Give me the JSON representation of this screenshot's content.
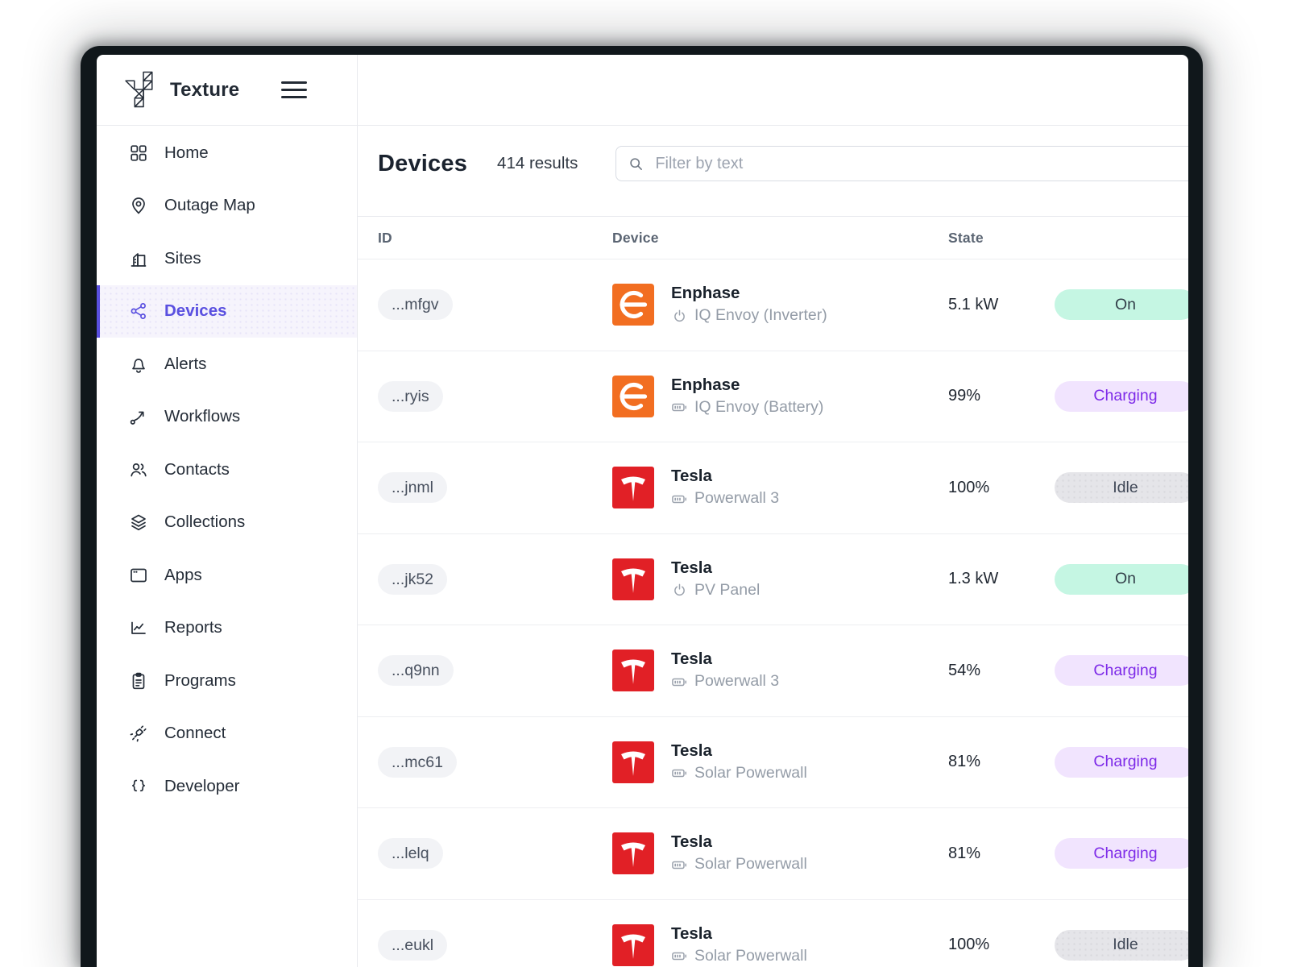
{
  "brand": {
    "name": "Texture"
  },
  "theme": {
    "accent": "#5a50e0",
    "badges": {
      "on": {
        "bg": "#c5f6e3",
        "text": "#33404a"
      },
      "charging": {
        "bg": "#f1e4fe",
        "text": "#7d2ae8"
      },
      "idle": {
        "bg": "#e5e5e9",
        "text": "#404857"
      }
    },
    "logos": {
      "enphase": "#f26e21",
      "tesla": "#e12026"
    }
  },
  "sidebar": {
    "items": [
      {
        "label": "Home",
        "icon": "grid-icon",
        "active": false
      },
      {
        "label": "Outage Map",
        "icon": "map-pin-icon",
        "active": false
      },
      {
        "label": "Sites",
        "icon": "building-icon",
        "active": false
      },
      {
        "label": "Devices",
        "icon": "share-network-icon",
        "active": true
      },
      {
        "label": "Alerts",
        "icon": "bell-icon",
        "active": false
      },
      {
        "label": "Workflows",
        "icon": "trend-arrow-icon",
        "active": false
      },
      {
        "label": "Contacts",
        "icon": "users-icon",
        "active": false
      },
      {
        "label": "Collections",
        "icon": "layers-icon",
        "active": false
      },
      {
        "label": "Apps",
        "icon": "window-icon",
        "active": false
      },
      {
        "label": "Reports",
        "icon": "chart-icon",
        "active": false
      },
      {
        "label": "Programs",
        "icon": "clipboard-icon",
        "active": false
      },
      {
        "label": "Connect",
        "icon": "plug-icon",
        "active": false
      },
      {
        "label": "Developer",
        "icon": "braces-icon",
        "active": false
      }
    ]
  },
  "header": {
    "title": "Devices",
    "results": "414 results",
    "search_placeholder": "Filter by text"
  },
  "table": {
    "columns": [
      "ID",
      "Device",
      "State"
    ],
    "rows": [
      {
        "id": "...mfgv",
        "brand": "Enphase",
        "model": "IQ Envoy (Inverter)",
        "model_icon": "power-icon",
        "logo": "enphase",
        "state": "5.1 kW",
        "badge": "On",
        "badge_type": "on"
      },
      {
        "id": "...ryis",
        "brand": "Enphase",
        "model": "IQ Envoy (Battery)",
        "model_icon": "battery-icon",
        "logo": "enphase",
        "state": "99%",
        "badge": "Charging",
        "badge_type": "charging"
      },
      {
        "id": "...jnml",
        "brand": "Tesla",
        "model": "Powerwall 3",
        "model_icon": "battery-icon",
        "logo": "tesla",
        "state": "100%",
        "badge": "Idle",
        "badge_type": "idle"
      },
      {
        "id": "...jk52",
        "brand": "Tesla",
        "model": "PV Panel",
        "model_icon": "power-icon",
        "logo": "tesla",
        "state": "1.3 kW",
        "badge": "On",
        "badge_type": "on"
      },
      {
        "id": "...q9nn",
        "brand": "Tesla",
        "model": "Powerwall 3",
        "model_icon": "battery-icon",
        "logo": "tesla",
        "state": "54%",
        "badge": "Charging",
        "badge_type": "charging"
      },
      {
        "id": "...mc61",
        "brand": "Tesla",
        "model": "Solar Powerwall",
        "model_icon": "battery-icon",
        "logo": "tesla",
        "state": "81%",
        "badge": "Charging",
        "badge_type": "charging"
      },
      {
        "id": "...lelq",
        "brand": "Tesla",
        "model": "Solar Powerwall",
        "model_icon": "battery-icon",
        "logo": "tesla",
        "state": "81%",
        "badge": "Charging",
        "badge_type": "charging"
      },
      {
        "id": "...eukl",
        "brand": "Tesla",
        "model": "Solar Powerwall",
        "model_icon": "battery-icon",
        "logo": "tesla",
        "state": "100%",
        "badge": "Idle",
        "badge_type": "idle"
      }
    ]
  }
}
